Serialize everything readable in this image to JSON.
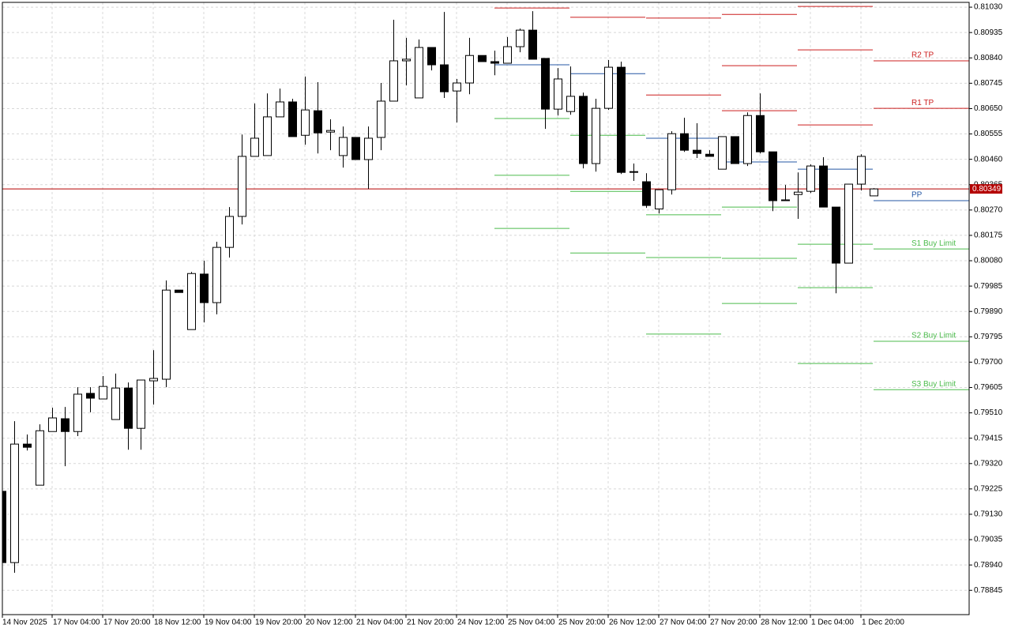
{
  "chart_data": {
    "type": "candlestick",
    "categories": [
      "14 Nov 2025",
      null,
      null,
      null,
      "17 Nov 04:00",
      null,
      null,
      null,
      "17 Nov 20:00",
      null,
      null,
      null,
      "18 Nov 12:00",
      null,
      null,
      null,
      "19 Nov 04:00",
      null,
      null,
      null,
      "19 Nov 20:00",
      null,
      null,
      null,
      "20 Nov 12:00",
      null,
      null,
      null,
      "21 Nov 04:00",
      null,
      null,
      null,
      "21 Nov 20:00",
      null,
      null,
      null,
      "24 Nov 12:00",
      null,
      null,
      null,
      "25 Nov 04:00",
      null,
      null,
      null,
      "25 Nov 20:00",
      null,
      null,
      null,
      "26 Nov 12:00",
      null,
      null,
      null,
      "27 Nov 04:00",
      null,
      null,
      null,
      "27 Nov 20:00",
      null,
      null,
      null,
      "28 Nov 12:00",
      null,
      null,
      null,
      "1 Dec 04:00",
      null,
      null,
      null,
      "1 Dec 20:00",
      null
    ],
    "open": [
      0.79216,
      0.78949,
      0.79393,
      0.79239,
      0.7944,
      0.79488,
      0.7944,
      0.79583,
      0.79562,
      0.79485,
      0.79603,
      0.79452,
      0.7963,
      0.79636,
      0.7997,
      0.79822,
      0.8003,
      0.79923,
      0.8013,
      0.80246,
      0.80471,
      0.80474,
      0.80619,
      0.80675,
      0.8055,
      0.80642,
      0.80562,
      0.80474,
      0.80542,
      0.80459,
      0.80542,
      0.80678,
      0.80829,
      0.8069,
      0.80879,
      0.80814,
      0.80716,
      0.80746,
      0.80849,
      0.80826,
      0.8082,
      0.80882,
      0.80944,
      0.80838,
      0.80648,
      0.80639,
      0.80696,
      0.80444,
      0.80651,
      0.80805,
      0.80414,
      0.80376,
      0.80274,
      0.80346,
      0.80556,
      0.80494,
      0.80479,
      0.80423,
      0.80545,
      0.80444,
      0.80624,
      0.80488,
      0.80308,
      0.80328,
      0.8034,
      0.80435,
      0.80281,
      0.80071,
      0.80367,
      0.80323
    ],
    "high": [
      0.79221,
      0.79479,
      0.79429,
      0.79467,
      0.79529,
      0.79532,
      0.79606,
      0.79606,
      0.79648,
      0.79657,
      0.79624,
      0.79633,
      0.79745,
      0.80006,
      0.7997,
      0.80038,
      0.8008,
      0.80151,
      0.80281,
      0.80553,
      0.80669,
      0.80707,
      0.80725,
      0.80687,
      0.8077,
      0.80749,
      0.8061,
      0.80583,
      0.80542,
      0.80583,
      0.80746,
      0.80983,
      0.80915,
      0.80909,
      0.80879,
      0.81012,
      0.80761,
      0.80915,
      0.80849,
      0.80867,
      0.80918,
      0.8095,
      0.81015,
      0.80838,
      0.80802,
      0.80808,
      0.8071,
      0.80687,
      0.80832,
      0.80826,
      0.80444,
      0.80408,
      0.80346,
      0.80565,
      0.80616,
      0.80595,
      0.80494,
      0.80545,
      0.80545,
      0.80636,
      0.80707,
      0.80488,
      0.80364,
      0.80411,
      0.80441,
      0.80468,
      0.80281,
      0.80367,
      0.80479,
      0.80352
    ],
    "low": [
      0.78943,
      0.78911,
      0.79369,
      0.79239,
      0.7944,
      0.7931,
      0.79423,
      0.79512,
      0.79562,
      0.79485,
      0.79372,
      0.79372,
      0.79541,
      0.79606,
      0.79961,
      0.79822,
      0.79849,
      0.79879,
      0.80092,
      0.80216,
      0.80471,
      0.80474,
      0.80619,
      0.80545,
      0.80515,
      0.80482,
      0.80494,
      0.80429,
      0.80459,
      0.80349,
      0.80494,
      0.80678,
      0.80737,
      0.8069,
      0.80793,
      0.8069,
      0.80598,
      0.80704,
      0.80826,
      0.80775,
      0.8082,
      0.80861,
      0.80835,
      0.80574,
      0.80624,
      0.80627,
      0.80426,
      0.80414,
      0.80645,
      0.80405,
      0.80379,
      0.80278,
      0.80257,
      0.80328,
      0.80488,
      0.80465,
      0.80471,
      0.80423,
      0.80444,
      0.80435,
      0.80482,
      0.80266,
      0.80305,
      0.80237,
      0.80334,
      0.80281,
      0.79958,
      0.80071,
      0.80343,
      0.80323
    ],
    "close": [
      0.78949,
      0.79393,
      0.79381,
      0.79443,
      0.79491,
      0.7944,
      0.7958,
      0.79565,
      0.79609,
      0.79603,
      0.79452,
      0.79633,
      0.79639,
      0.7997,
      0.79961,
      0.80032,
      0.79923,
      0.8013,
      0.80246,
      0.80471,
      0.80539,
      0.80619,
      0.80675,
      0.80545,
      0.80645,
      0.80559,
      0.80568,
      0.80542,
      0.80459,
      0.80539,
      0.80678,
      0.80829,
      0.80835,
      0.80879,
      0.80814,
      0.80713,
      0.80746,
      0.80849,
      0.80826,
      0.8082,
      0.80882,
      0.80944,
      0.80835,
      0.80648,
      0.80761,
      0.80696,
      0.80444,
      0.80651,
      0.80805,
      0.80411,
      0.80414,
      0.80287,
      0.80346,
      0.80556,
      0.80494,
      0.80482,
      0.80471,
      0.80545,
      0.80444,
      0.80624,
      0.80488,
      0.80305,
      0.80305,
      0.80337,
      0.80435,
      0.80281,
      0.80071,
      0.80367,
      0.80471,
      0.80349
    ],
    "up_color": "#ffffff",
    "down_color": "#000000",
    "ylim": [
      0.78754,
      0.81048
    ],
    "yticks": [
      {
        "value": 0.8103,
        "label": "0.81030"
      },
      0.80935,
      {
        "value": 0.8084,
        "label": "0.80840"
      },
      0.80745,
      {
        "value": 0.8065,
        "label": "0.80650"
      },
      0.80555,
      {
        "value": 0.8046,
        "label": "0.80460"
      },
      0.80365,
      {
        "value": 0.8027,
        "label": "0.80270"
      },
      0.80175,
      {
        "value": 0.8008,
        "label": "0.80080"
      },
      0.79985,
      {
        "value": 0.7989,
        "label": "0.79890"
      },
      0.79795,
      {
        "value": 0.797,
        "label": "0.79700"
      },
      0.79605,
      {
        "value": 0.7951,
        "label": "0.79510"
      },
      0.79415,
      {
        "value": 0.7932,
        "label": "0.79320"
      },
      0.79225,
      {
        "value": 0.7913,
        "label": "0.79130"
      },
      0.79035,
      {
        "value": 0.7894,
        "label": "0.78940"
      },
      0.78845
    ],
    "grid": true,
    "last_price": 0.80349,
    "last_price_color": "#b40000",
    "pivot_colors": {
      "resistance": "#cc1f1f",
      "pivot": "#2457a4",
      "support": "#4cbb4c"
    },
    "pivot_sets": [
      {
        "resistance": [
          0.81027
        ],
        "pivot": 0.80814,
        "support": [
          0.80613,
          0.804,
          0.80201
        ]
      },
      {
        "resistance": [
          0.80992
        ],
        "pivot": 0.80781,
        "support": [
          0.8055,
          0.8034,
          0.80109
        ]
      },
      {
        "resistance": [
          0.80989,
          0.80701
        ],
        "pivot": 0.80539,
        "support": [
          0.80252,
          0.80092,
          0.79805
        ]
      },
      {
        "resistance": [
          0.81003,
          0.80811,
          0.80642
        ],
        "pivot": 0.8045,
        "support": [
          0.80281,
          0.80089,
          0.7992
        ]
      },
      {
        "resistance": [
          0.81033,
          0.8087,
          0.80589
        ],
        "pivot": 0.80423,
        "support": [
          0.80142,
          0.79979,
          0.79695
        ]
      },
      {
        "resistance": [
          0.80829,
          0.80651
        ],
        "pivot": 0.80305,
        "support": [
          0.80124,
          0.79778,
          0.79597
        ],
        "labels": {
          "resistance": [
            "R2 TP",
            "R1 TP"
          ],
          "pivot": "PP",
          "support": [
            "S1 Buy Limit",
            "S2 Buy Limit",
            "S3 Buy Limit"
          ]
        }
      }
    ]
  }
}
